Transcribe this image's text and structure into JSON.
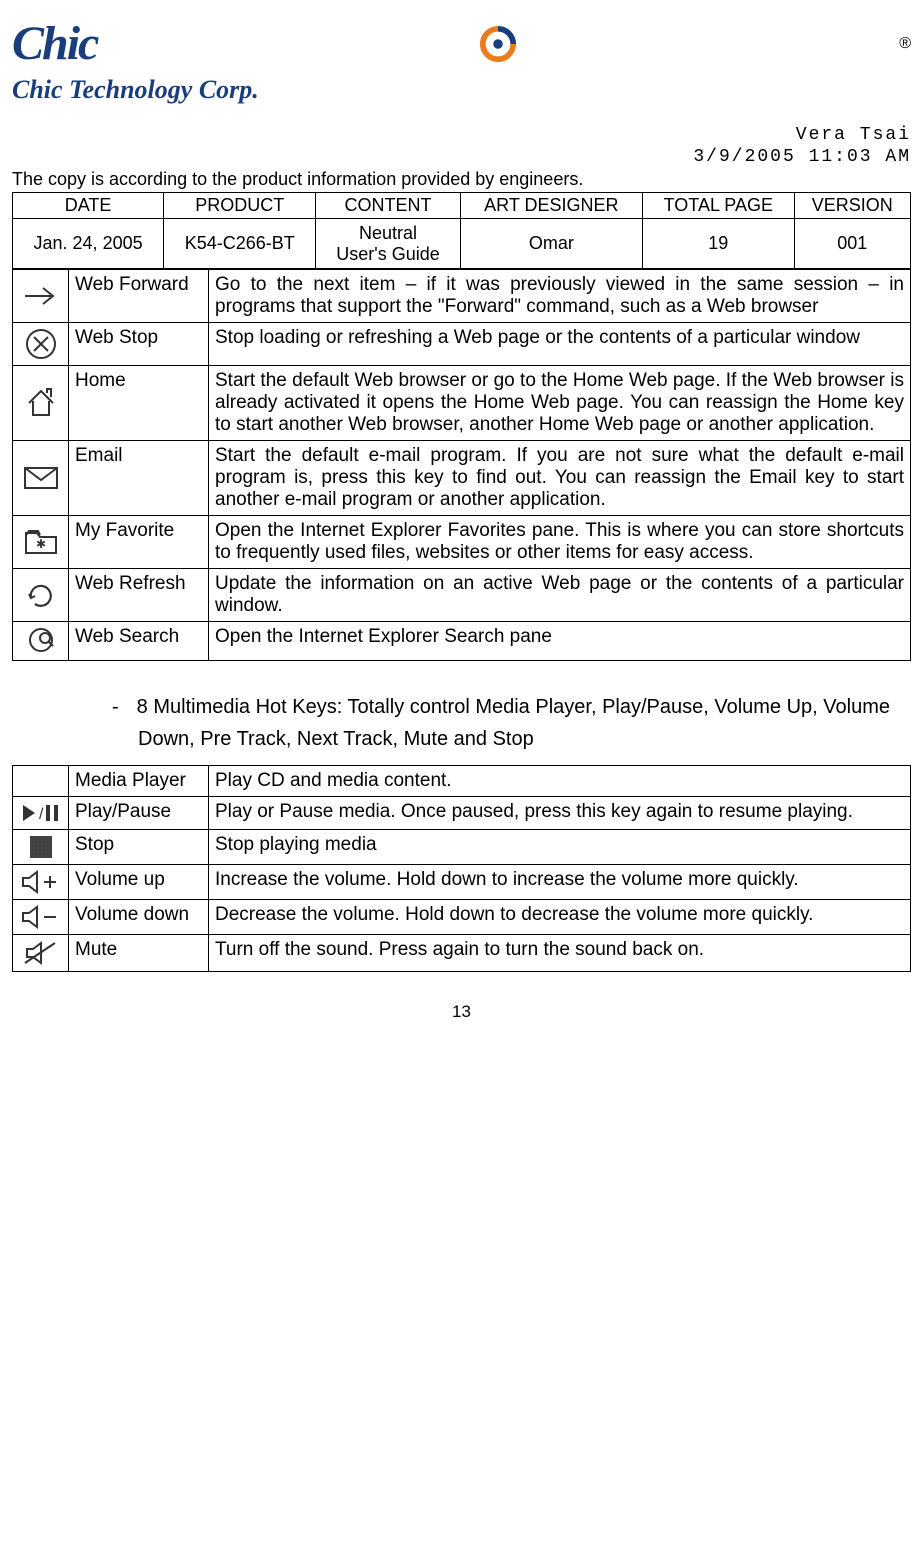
{
  "logo": {
    "name": "Chic",
    "sub": "Chic Technology Corp."
  },
  "meta": {
    "author": "Vera Tsai",
    "timestamp": "3/9/2005 11:03 AM"
  },
  "copy_note": "The copy is according to the product information provided by engineers.",
  "info_table": {
    "headers": [
      "DATE",
      "PRODUCT",
      "CONTENT",
      "ART DESIGNER",
      "TOTAL PAGE",
      "VERSION"
    ],
    "row": [
      "Jan. 24, 2005",
      "K54-C266-BT",
      "Neutral\nUser's Guide",
      "Omar",
      "19",
      "001"
    ]
  },
  "web_keys": [
    {
      "icon": "forward",
      "label": "Web Forward",
      "desc": "Go to the next item – if it was previously viewed in the same session – in programs that support the \"Forward\" command, such as a Web browser"
    },
    {
      "icon": "stop-x",
      "label": "Web Stop",
      "desc": "Stop loading or refreshing a Web page or the contents of a particular window"
    },
    {
      "icon": "home",
      "label": "Home",
      "desc": "Start the default Web browser or go to the Home Web page. If the Web browser is already activated it opens the Home Web page. You can reassign the Home key to start another Web browser, another Home Web page or another application."
    },
    {
      "icon": "email",
      "label": "Email",
      "desc": "Start the default e-mail program. If you are not sure what the default e-mail program is, press this key to find out. You can reassign the Email key to start another e-mail program or another application."
    },
    {
      "icon": "favorite",
      "label": "My Favorite",
      "desc": "Open the Internet Explorer Favorites pane. This is where you can store shortcuts to frequently used files, websites or other items for easy access."
    },
    {
      "icon": "refresh",
      "label": "Web Refresh",
      "desc": "Update the information on an active Web page or the contents of a particular window."
    },
    {
      "icon": "search",
      "label": "Web Search",
      "desc": "Open the Internet Explorer Search pane"
    }
  ],
  "bullet": "8 Multimedia Hot Keys: Totally control Media Player, Play/Pause, Volume Up, Volume Down, Pre Track, Next Track, Mute and Stop",
  "media_keys": [
    {
      "icon": "",
      "label": "Media Player",
      "desc": "Play CD and media content."
    },
    {
      "icon": "playpause",
      "label": "Play/Pause",
      "desc": "Play or Pause media. Once paused, press this key again to resume playing."
    },
    {
      "icon": "stop-sq",
      "label": "Stop",
      "desc": "Stop playing media"
    },
    {
      "icon": "vol-up",
      "label": "Volume up",
      "desc": "Increase the volume. Hold down to increase the volume more quickly."
    },
    {
      "icon": "vol-down",
      "label": "Volume down",
      "desc": "Decrease the volume. Hold down to decrease the volume more quickly."
    },
    {
      "icon": "mute",
      "label": "Mute",
      "desc": "Turn off the sound. Press again to turn the sound back on."
    }
  ],
  "page_number": "13",
  "colors": {
    "brand": "#1a3d7c",
    "orange": "#e87d1e",
    "border": "#000000",
    "bg": "#ffffff"
  }
}
